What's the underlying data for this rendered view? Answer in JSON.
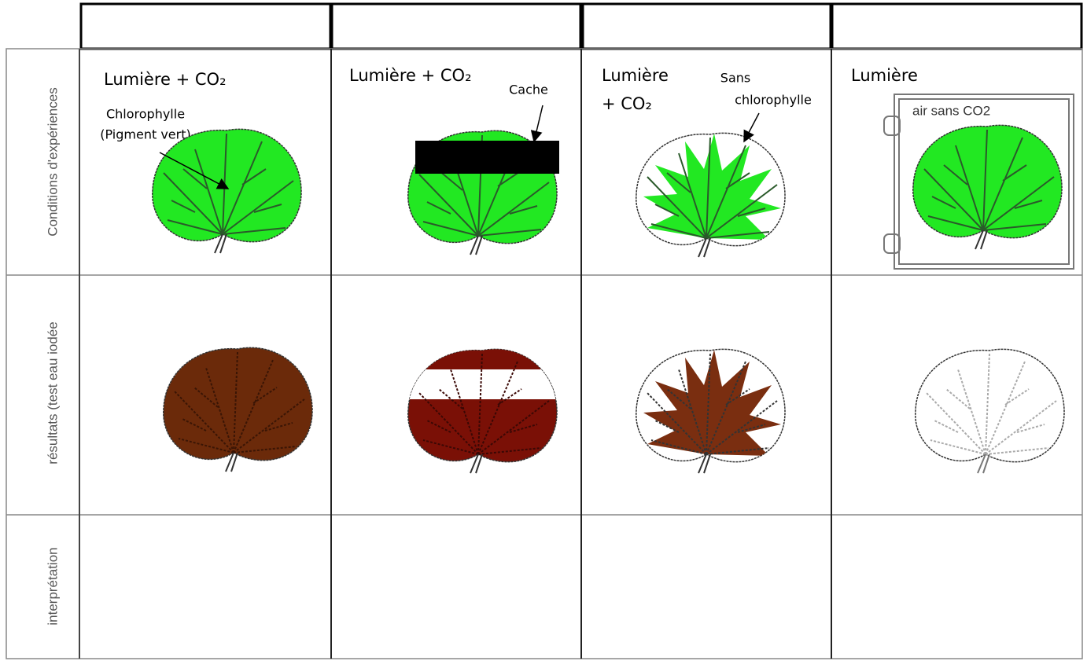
{
  "rows": [
    {
      "label": "Conditions d'expériences",
      "cells": [
        {
          "title_lines": [
            "Lumière + CO₂"
          ],
          "note_lines": [
            "Chlorophylle",
            "(Pigment vert)"
          ]
        },
        {
          "title_lines": [
            "Lumière + CO₂"
          ],
          "note_lines": [
            "Cache"
          ]
        },
        {
          "title_lines": [
            "Lumière",
            "+ CO₂"
          ],
          "note_lines": [
            "Sans",
            "chlorophylle"
          ]
        },
        {
          "title_lines": [
            "Lumière"
          ],
          "note_lines": [
            "air sans CO2"
          ]
        }
      ]
    },
    {
      "label": "résultats (test eau iodée"
    },
    {
      "label": "interprétation"
    }
  ]
}
